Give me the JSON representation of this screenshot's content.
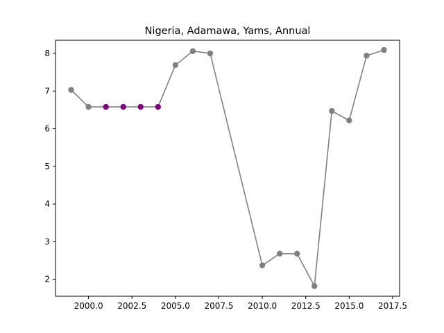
{
  "chart_data": {
    "type": "line",
    "title": "Nigeria, Adamawa, Yams, Annual",
    "xlabel": "",
    "ylabel": "",
    "xlim": [
      1998.1,
      2017.9
    ],
    "ylim": [
      1.55,
      8.35
    ],
    "xticks": [
      2000.0,
      2002.5,
      2005.0,
      2007.5,
      2010.0,
      2012.5,
      2015.0,
      2017.5
    ],
    "xtick_labels": [
      "2000.0",
      "2002.5",
      "2005.0",
      "2007.5",
      "2010.0",
      "2012.5",
      "2015.0",
      "2017.5"
    ],
    "yticks": [
      2,
      3,
      4,
      5,
      6,
      7,
      8
    ],
    "ytick_labels": [
      "2",
      "3",
      "4",
      "5",
      "6",
      "7",
      "8"
    ],
    "grid": false,
    "line_color": "#808080",
    "point_color": "#808080",
    "highlight_color": "#800080",
    "points": [
      {
        "x": 1999,
        "y": 7.03,
        "highlight": false
      },
      {
        "x": 2000,
        "y": 6.58,
        "highlight": false
      },
      {
        "x": 2001,
        "y": 6.58,
        "highlight": true
      },
      {
        "x": 2002,
        "y": 6.58,
        "highlight": true
      },
      {
        "x": 2003,
        "y": 6.58,
        "highlight": true
      },
      {
        "x": 2004,
        "y": 6.58,
        "highlight": true
      },
      {
        "x": 2005,
        "y": 7.69,
        "highlight": false
      },
      {
        "x": 2006,
        "y": 8.06,
        "highlight": false
      },
      {
        "x": 2007,
        "y": 8.0,
        "highlight": false
      },
      {
        "x": 2010,
        "y": 2.37,
        "highlight": false
      },
      {
        "x": 2011,
        "y": 2.68,
        "highlight": false
      },
      {
        "x": 2012,
        "y": 2.68,
        "highlight": false
      },
      {
        "x": 2013,
        "y": 1.82,
        "highlight": false
      },
      {
        "x": 2014,
        "y": 6.47,
        "highlight": false
      },
      {
        "x": 2015,
        "y": 6.22,
        "highlight": false
      },
      {
        "x": 2016,
        "y": 7.94,
        "highlight": false
      },
      {
        "x": 2017,
        "y": 8.09,
        "highlight": false
      }
    ]
  }
}
